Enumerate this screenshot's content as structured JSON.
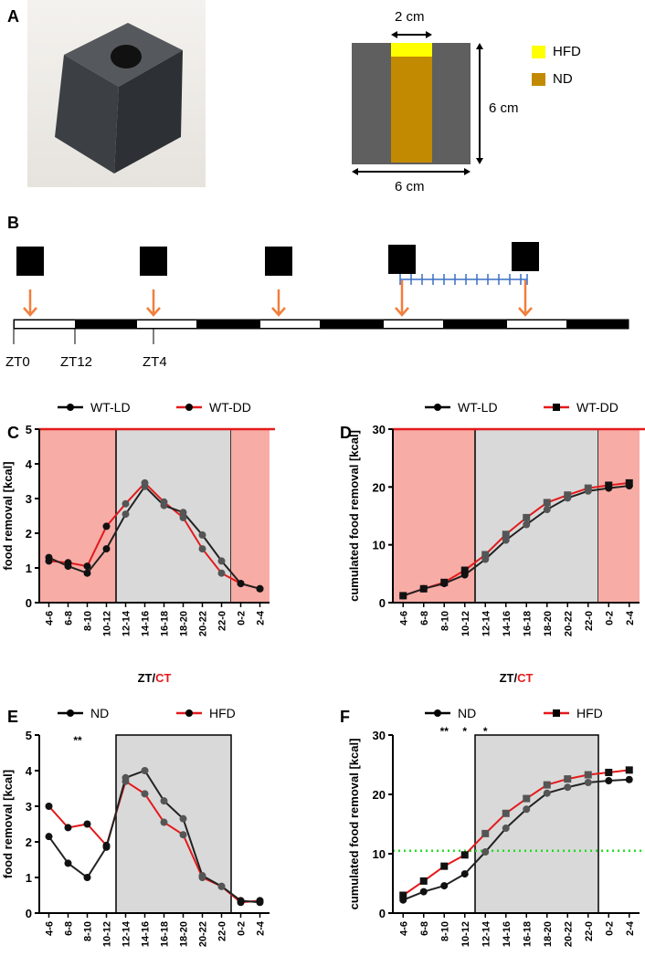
{
  "panels": {
    "a": {
      "label": "A",
      "diagram": {
        "width_label": "2 cm",
        "height_label": "6 cm",
        "base_label": "6 cm"
      },
      "legend": [
        {
          "name": "HFD",
          "color": "#ffff00"
        },
        {
          "name": "ND",
          "color": "#c28a00"
        }
      ]
    },
    "b": {
      "label": "B",
      "ticks": [
        "ZT0",
        "ZT12",
        "ZT4"
      ]
    },
    "c": {
      "label": "C"
    },
    "d": {
      "label": "D"
    },
    "e": {
      "label": "E"
    },
    "f": {
      "label": "F"
    }
  },
  "colors": {
    "light_phase": "#f8aca6",
    "dark_phase": "#d9d9d9",
    "red": "#e31a1c",
    "arrow": "#f07f3c",
    "block": "#000000",
    "tick_line": "#3a6fc4",
    "threshold": "#22dd22"
  },
  "chart_data": [
    {
      "id": "C",
      "type": "line",
      "categories": [
        "4-6",
        "6-8",
        "8-10",
        "10-12",
        "12-14",
        "14-16",
        "16-18",
        "18-20",
        "20-22",
        "22-0",
        "0-2",
        "2-4"
      ],
      "ylabel": "food removal [kcal]",
      "xlabel_parts": [
        "ZT/",
        "CT"
      ],
      "ylim": [
        0,
        5
      ],
      "yticks": [
        0,
        1,
        2,
        3,
        4,
        5
      ],
      "shading": [
        {
          "from": 0,
          "to": 3,
          "phase": "light"
        },
        {
          "from": 4,
          "to": 9,
          "phase": "dark"
        },
        {
          "from": 10,
          "to": 11,
          "phase": "light"
        }
      ],
      "red_top_line": true,
      "legend": "top",
      "series": [
        {
          "name": "WT-LD",
          "color": "#000000",
          "marker": "circle",
          "values": [
            1.3,
            1.05,
            0.85,
            1.55,
            2.55,
            3.35,
            2.8,
            2.6,
            1.95,
            1.2,
            0.55,
            0.4
          ]
        },
        {
          "name": "WT-DD",
          "color": "#e31a1c",
          "marker": "circle",
          "values": [
            1.2,
            1.15,
            1.05,
            2.2,
            2.85,
            3.45,
            2.9,
            2.45,
            1.55,
            0.85,
            0.55,
            0.4
          ]
        }
      ],
      "annotations": []
    },
    {
      "id": "D",
      "type": "line",
      "categories": [
        "4-6",
        "6-8",
        "8-10",
        "10-12",
        "12-14",
        "14-16",
        "16-18",
        "18-20",
        "20-22",
        "22-0",
        "0-2",
        "2-4"
      ],
      "ylabel": "cumulated food removal [kcal]",
      "xlabel_parts": [
        "ZT/",
        "CT"
      ],
      "ylim": [
        0,
        30
      ],
      "yticks": [
        0,
        10,
        20,
        30
      ],
      "shading": [
        {
          "from": 0,
          "to": 3,
          "phase": "light"
        },
        {
          "from": 4,
          "to": 9,
          "phase": "dark"
        },
        {
          "from": 10,
          "to": 11,
          "phase": "light"
        }
      ],
      "red_top_line": true,
      "legend": "top",
      "series": [
        {
          "name": "WT-LD",
          "color": "#000000",
          "marker": "circle",
          "values": [
            1.2,
            2.4,
            3.3,
            4.8,
            7.5,
            10.8,
            13.5,
            16.1,
            18.1,
            19.3,
            19.8,
            20.2
          ]
        },
        {
          "name": "WT-DD",
          "color": "#e31a1c",
          "marker": "square",
          "values": [
            1.2,
            2.4,
            3.5,
            5.6,
            8.3,
            11.8,
            14.7,
            17.3,
            18.6,
            19.8,
            20.3,
            20.7
          ]
        }
      ],
      "annotations": []
    },
    {
      "id": "E",
      "type": "line",
      "categories": [
        "4-6",
        "6-8",
        "8-10",
        "10-12",
        "12-14",
        "14-16",
        "16-18",
        "18-20",
        "20-22",
        "22-0",
        "0-2",
        "2-4"
      ],
      "ylabel": "food removal [kcal]",
      "xlabel_parts": [
        "ZT",
        ""
      ],
      "ylim": [
        0,
        5
      ],
      "yticks": [
        0,
        1,
        2,
        3,
        4,
        5
      ],
      "shading": [
        {
          "from": 4,
          "to": 9,
          "phase": "dark"
        }
      ],
      "red_top_line": false,
      "legend": "top",
      "series": [
        {
          "name": "ND",
          "color": "#000000",
          "marker": "circle",
          "values": [
            2.15,
            1.4,
            1.0,
            1.85,
            3.8,
            4.0,
            3.15,
            2.65,
            1.05,
            0.75,
            0.35,
            0.3
          ]
        },
        {
          "name": "HFD",
          "color": "#e31a1c",
          "marker": "circle",
          "values": [
            3.0,
            2.4,
            2.5,
            1.9,
            3.7,
            3.35,
            2.55,
            2.2,
            1.0,
            0.75,
            0.3,
            0.35
          ]
        }
      ],
      "annotations": [
        {
          "category": 1.5,
          "text": "**"
        }
      ]
    },
    {
      "id": "F",
      "type": "line",
      "categories": [
        "4-6",
        "6-8",
        "8-10",
        "10-12",
        "12-14",
        "14-16",
        "16-18",
        "18-20",
        "20-22",
        "22-0",
        "0-2",
        "2-4"
      ],
      "ylabel": "cumulated food removal [kcal]",
      "xlabel_parts": [
        "ZT",
        ""
      ],
      "ylim": [
        0,
        30
      ],
      "yticks": [
        0,
        10,
        20,
        30
      ],
      "shading": [
        {
          "from": 4,
          "to": 9,
          "phase": "dark"
        }
      ],
      "red_top_line": false,
      "legend": "top",
      "threshold": 10.5,
      "series": [
        {
          "name": "ND",
          "color": "#000000",
          "marker": "circle",
          "values": [
            2.2,
            3.6,
            4.6,
            6.6,
            10.3,
            14.3,
            17.5,
            20.2,
            21.2,
            22.0,
            22.3,
            22.5
          ]
        },
        {
          "name": "HFD",
          "color": "#e31a1c",
          "marker": "square",
          "values": [
            3.0,
            5.4,
            7.9,
            9.8,
            13.4,
            16.8,
            19.3,
            21.6,
            22.6,
            23.3,
            23.7,
            24.1
          ]
        }
      ],
      "annotations": [
        {
          "category": 2,
          "text": "**"
        },
        {
          "category": 3,
          "text": "*"
        },
        {
          "category": 4,
          "text": "*"
        }
      ]
    }
  ]
}
